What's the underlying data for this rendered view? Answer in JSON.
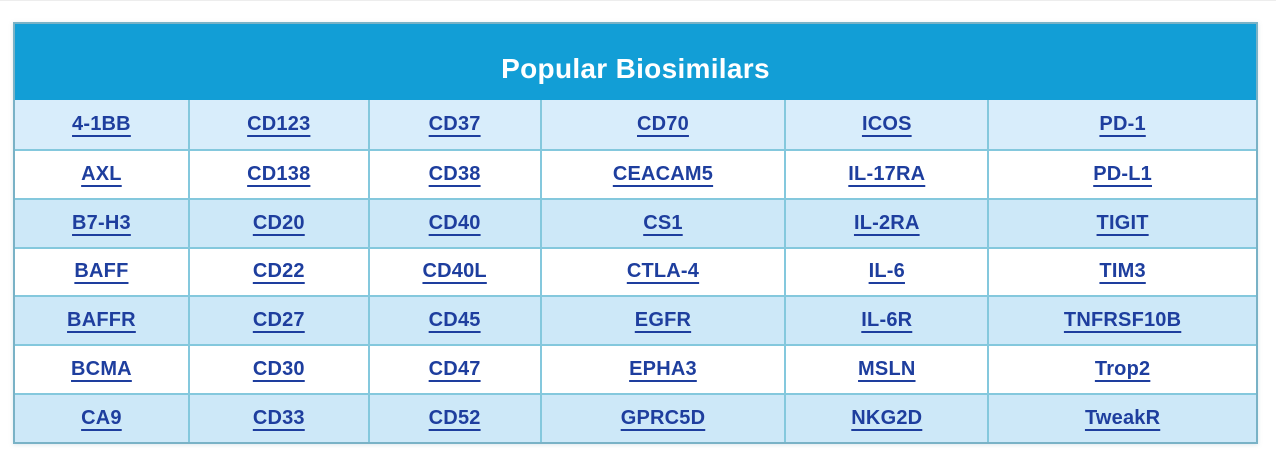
{
  "colors": {
    "header_bg": "#129ed6",
    "header_text": "#ffffff",
    "row_first_bg": "#d8edfb",
    "row_odd_bg": "#cde8f8",
    "row_even_bg": "#ffffff",
    "cell_border": "#84c8dd",
    "outer_border": "#79b2c6",
    "link": "#1e3e9e"
  },
  "table": {
    "title": "Popular Biosimilars",
    "rows": [
      [
        "4-1BB",
        "CD123",
        "CD37",
        "CD70",
        "ICOS",
        "PD-1"
      ],
      [
        "AXL",
        "CD138",
        "CD38",
        "CEACAM5",
        "IL-17RA",
        "PD-L1"
      ],
      [
        "B7-H3",
        "CD20",
        "CD40",
        "CS1",
        "IL-2RA",
        "TIGIT"
      ],
      [
        "BAFF",
        "CD22",
        "CD40L",
        "CTLA-4",
        "IL-6",
        "TIM3"
      ],
      [
        "BAFFR",
        "CD27",
        "CD45",
        "EGFR",
        "IL-6R",
        "TNFRSF10B"
      ],
      [
        "BCMA",
        "CD30",
        "CD47",
        "EPHA3",
        "MSLN",
        "Trop2"
      ],
      [
        "CA9",
        "CD33",
        "CD52",
        "GPRC5D",
        "NKG2D",
        "TweakR"
      ]
    ]
  }
}
